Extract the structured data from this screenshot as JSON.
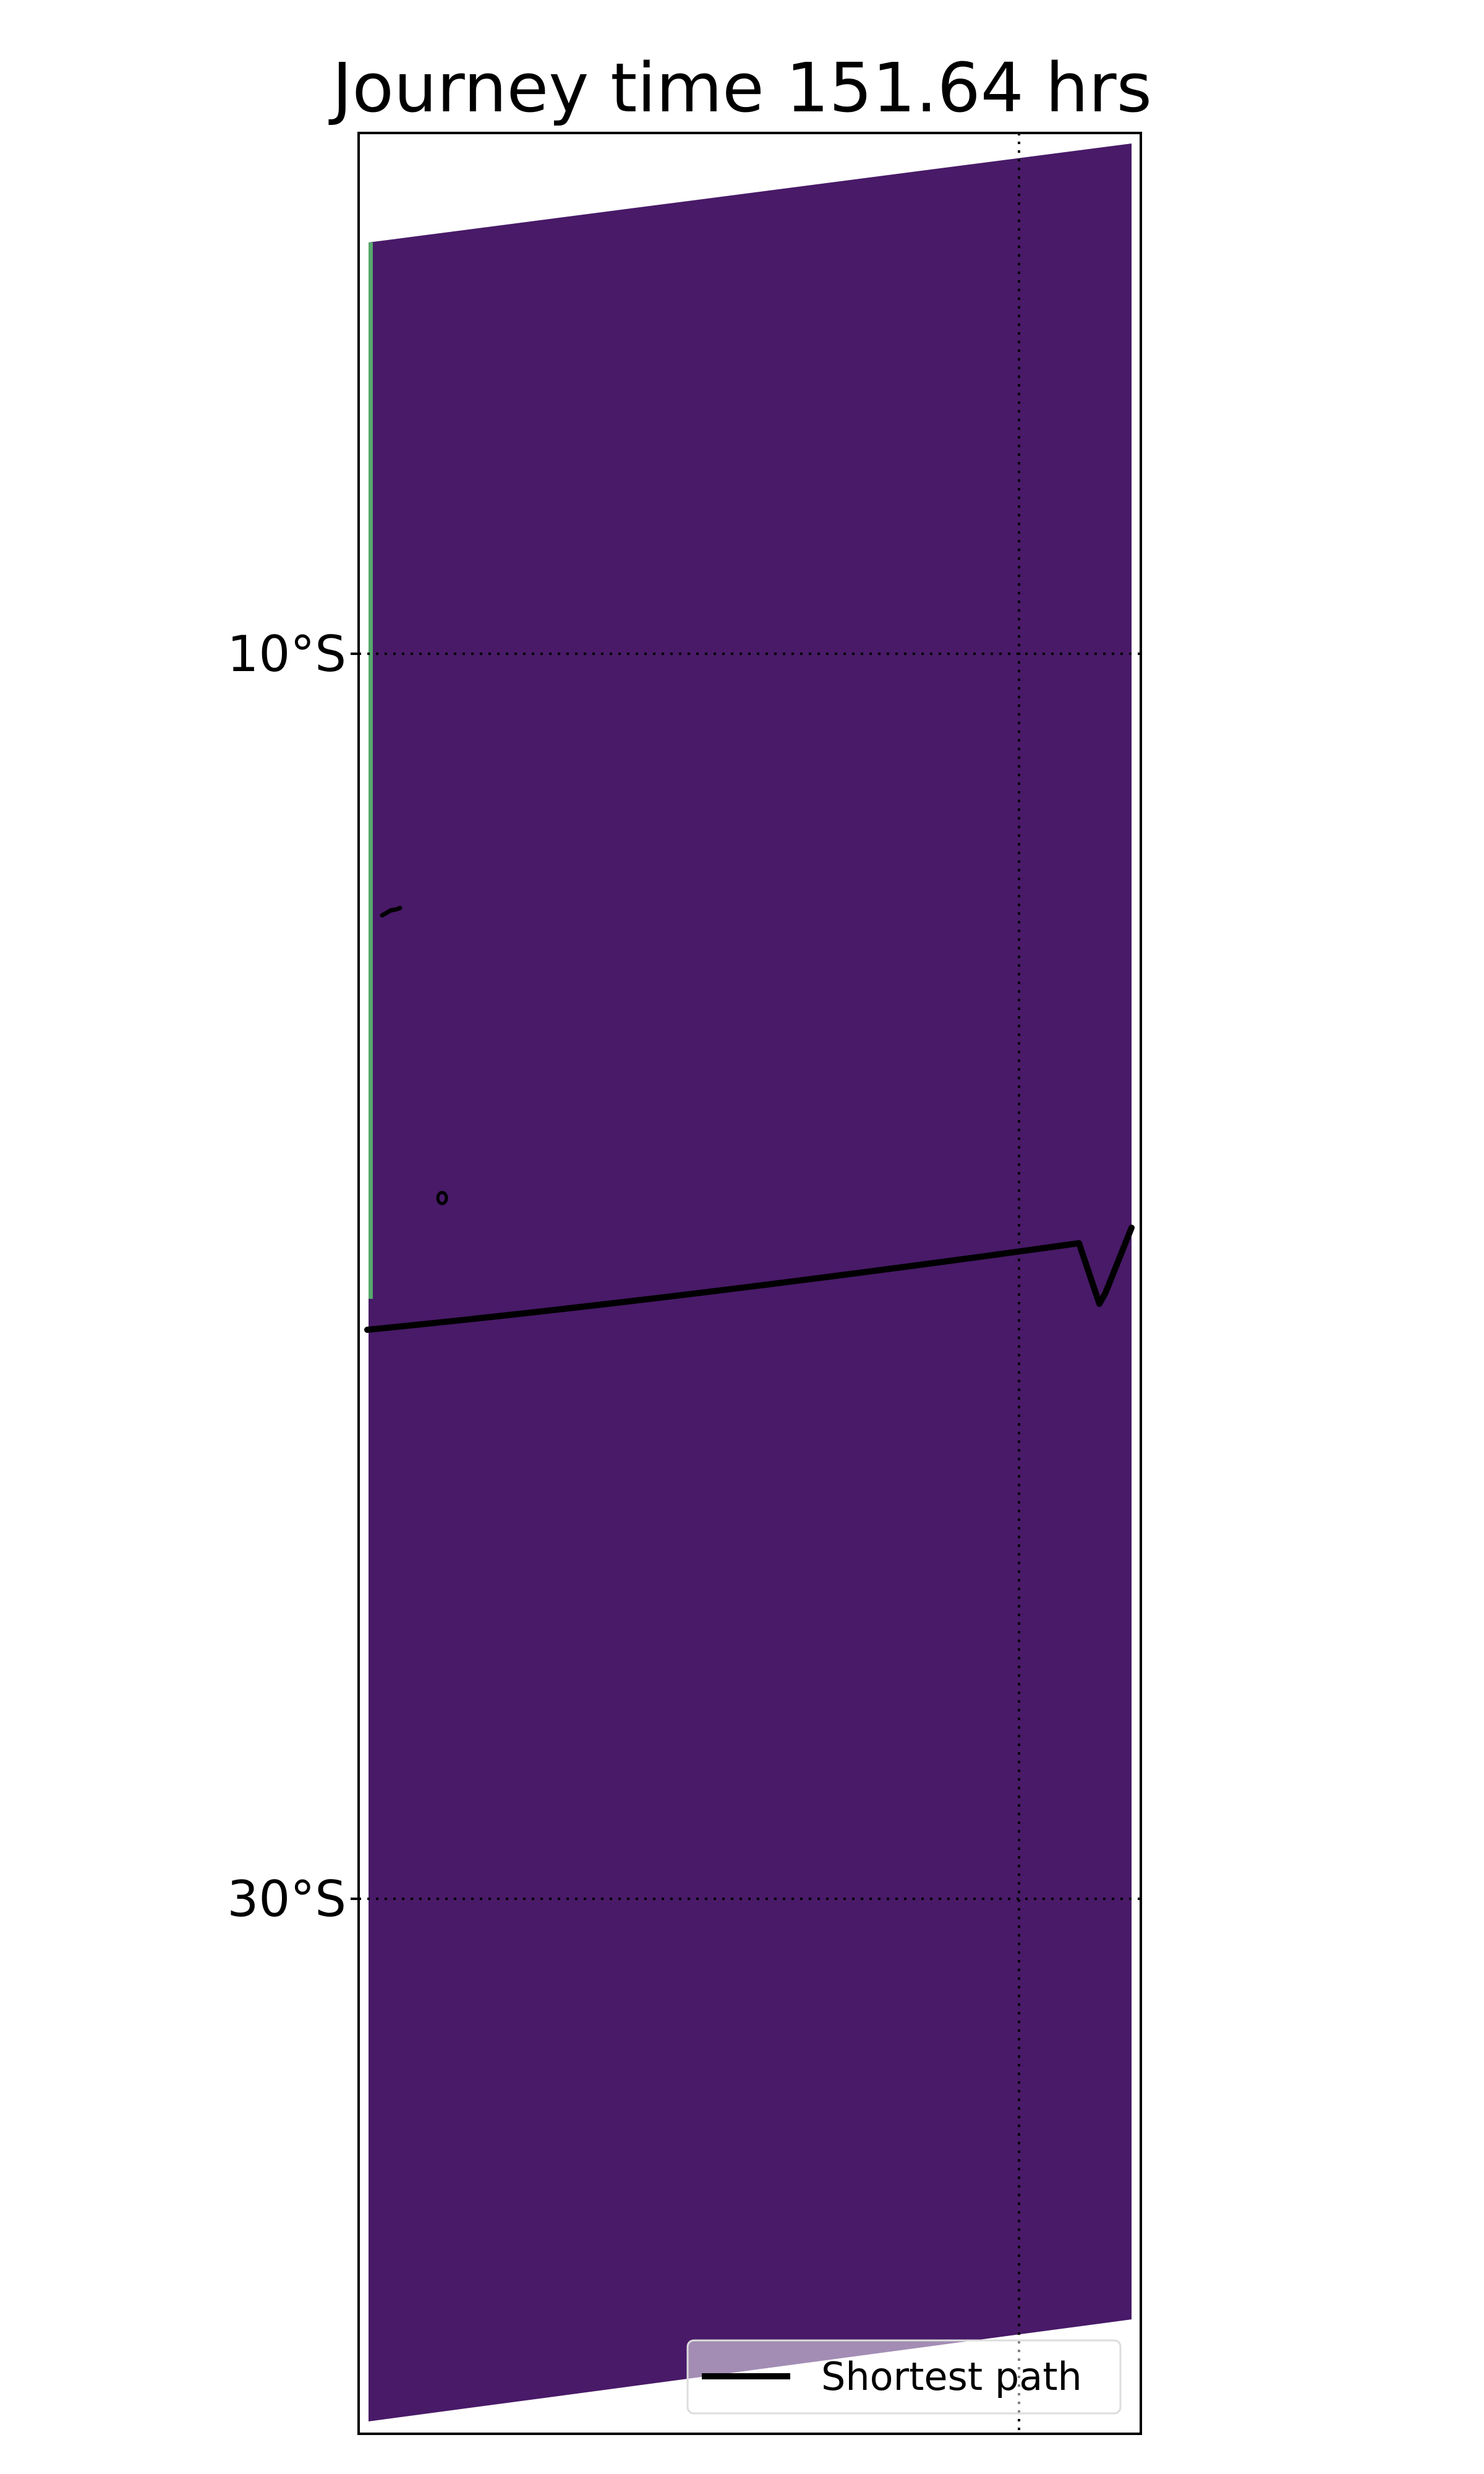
{
  "map": {
    "title": "Journey time 151.64 hrs",
    "latitude_labels": [
      "10°S",
      "30°S"
    ],
    "legend": {
      "entries": [
        {
          "label": "Shortest path",
          "color": "#000000",
          "line_style": "solid"
        }
      ],
      "placement": "lower-right"
    },
    "gridlines": {
      "style": "dotted",
      "color": "#000000"
    },
    "field_color": "#481a68",
    "coast_edge_color": "#5ac16e",
    "path_color": "#000000"
  }
}
